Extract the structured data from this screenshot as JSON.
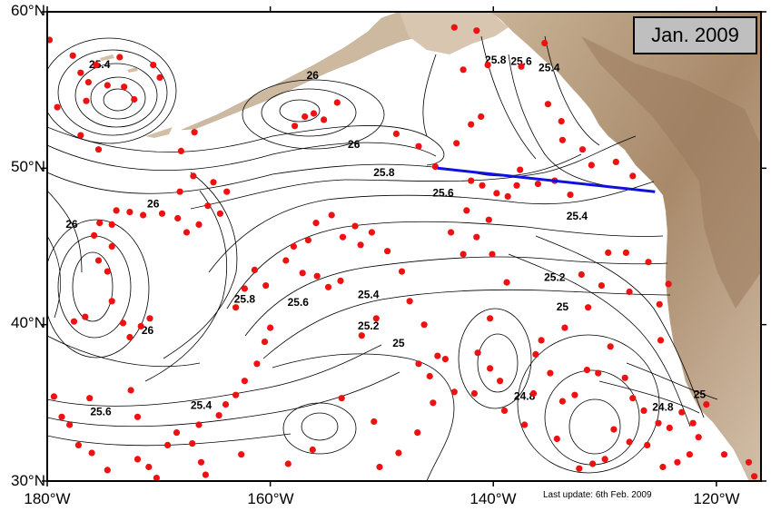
{
  "map": {
    "lat_labels": [
      {
        "label": "60°N",
        "lat": 60
      },
      {
        "label": "50°N",
        "lat": 50
      },
      {
        "label": "40°N",
        "lat": 40
      },
      {
        "label": "30°N",
        "lat": 30
      }
    ],
    "lon_labels": [
      {
        "label": "180°W",
        "lon": -180
      },
      {
        "label": "160°W",
        "lon": -160
      },
      {
        "label": "140°W",
        "lon": -140
      },
      {
        "label": "120°W",
        "lon": -120
      }
    ],
    "extent": {
      "lon_min": -180,
      "lon_max": -116,
      "lat_min": 30,
      "lat_max": 60
    },
    "date_label": "Jan. 2009",
    "update_note": "Last update: 6th Feb. 2009",
    "section_line": {
      "color": "#1010e0",
      "points": [
        [
          -145,
          50
        ],
        [
          -125.5,
          48.5
        ]
      ]
    },
    "float_color": "#ee1111",
    "contour_labels": [
      {
        "text": "25.4",
        "lon": -175.3,
        "lat": 56.4
      },
      {
        "text": "26",
        "lon": -156.2,
        "lat": 55.7
      },
      {
        "text": "26",
        "lon": -152.5,
        "lat": 51.3
      },
      {
        "text": "25.8",
        "lon": -149.8,
        "lat": 49.5
      },
      {
        "text": "25.6",
        "lon": -144.5,
        "lat": 48.2
      },
      {
        "text": "25.8",
        "lon": -139.8,
        "lat": 56.7
      },
      {
        "text": "25.6",
        "lon": -137.5,
        "lat": 56.6
      },
      {
        "text": "25.4",
        "lon": -135,
        "lat": 56.2
      },
      {
        "text": "26",
        "lon": -170.5,
        "lat": 47.5
      },
      {
        "text": "26",
        "lon": -177.8,
        "lat": 46.2
      },
      {
        "text": "25.4",
        "lon": -132.5,
        "lat": 46.7
      },
      {
        "text": "25.2",
        "lon": -134.5,
        "lat": 42.8
      },
      {
        "text": "25",
        "lon": -133.8,
        "lat": 40.9
      },
      {
        "text": "25.8",
        "lon": -162.3,
        "lat": 41.4
      },
      {
        "text": "25.6",
        "lon": -157.5,
        "lat": 41.2
      },
      {
        "text": "25.4",
        "lon": -151.2,
        "lat": 41.7
      },
      {
        "text": "25.2",
        "lon": -151.2,
        "lat": 39.7
      },
      {
        "text": "25",
        "lon": -148.5,
        "lat": 38.6
      },
      {
        "text": "26",
        "lon": -171,
        "lat": 39.4
      },
      {
        "text": "25.4",
        "lon": -166.2,
        "lat": 34.6
      },
      {
        "text": "25.6",
        "lon": -175.2,
        "lat": 34.2
      },
      {
        "text": "24.8",
        "lon": -137.2,
        "lat": 35.2
      },
      {
        "text": "24.8",
        "lon": -124.8,
        "lat": 34.5
      },
      {
        "text": "25",
        "lon": -121.5,
        "lat": 35.3
      }
    ],
    "floats": [
      [
        -179.8,
        58.2
      ],
      [
        -177.7,
        57.2
      ],
      [
        -177,
        56.1
      ],
      [
        -176.3,
        55.5
      ],
      [
        -175.6,
        56.6
      ],
      [
        -174.6,
        55.3
      ],
      [
        -173.5,
        57.1
      ],
      [
        -173.1,
        55.2
      ],
      [
        -172.2,
        54.4
      ],
      [
        -170.5,
        56.6
      ],
      [
        -169.9,
        55.8
      ],
      [
        -179.1,
        53.9
      ],
      [
        -177,
        52.1
      ],
      [
        -175.4,
        51.2
      ],
      [
        -176.5,
        54.3
      ],
      [
        -168,
        51.1
      ],
      [
        -166.8,
        52.3
      ],
      [
        -157.8,
        52.7
      ],
      [
        -156.9,
        53.3
      ],
      [
        -156.1,
        53.5
      ],
      [
        -155.2,
        53.1
      ],
      [
        -154,
        54.2
      ],
      [
        -148.7,
        52.2
      ],
      [
        -146.7,
        51.4
      ],
      [
        -145.2,
        50.1
      ],
      [
        -143.3,
        51.6
      ],
      [
        -142,
        52.8
      ],
      [
        -141.1,
        53.3
      ],
      [
        -140.5,
        56.6
      ],
      [
        -141.5,
        58.8
      ],
      [
        -143.5,
        59
      ],
      [
        -142.7,
        56.3
      ],
      [
        -137.5,
        56.5
      ],
      [
        -135.4,
        58
      ],
      [
        -135.1,
        54.1
      ],
      [
        -133.9,
        53
      ],
      [
        -133.8,
        51.8
      ],
      [
        -132,
        51.2
      ],
      [
        -131.2,
        50.2
      ],
      [
        -129,
        50.4
      ],
      [
        -127.5,
        49.5
      ],
      [
        -142,
        49.2
      ],
      [
        -141,
        48.9
      ],
      [
        -139.7,
        48.4
      ],
      [
        -138.7,
        48.2
      ],
      [
        -137.9,
        48.9
      ],
      [
        -137.6,
        49.9
      ],
      [
        -136,
        49
      ],
      [
        -134.5,
        49.2
      ],
      [
        -133.1,
        48.3
      ],
      [
        -165.1,
        49.1
      ],
      [
        -166.9,
        49.5
      ],
      [
        -168.1,
        48.5
      ],
      [
        -169.7,
        47.1
      ],
      [
        -171.4,
        47
      ],
      [
        -172.6,
        47.2
      ],
      [
        -173.8,
        47.3
      ],
      [
        -174.2,
        46.4
      ],
      [
        -175.3,
        46.5
      ],
      [
        -175.8,
        45.7
      ],
      [
        -174.2,
        45
      ],
      [
        -175.4,
        44.1
      ],
      [
        -174.6,
        43.4
      ],
      [
        -174.2,
        41.5
      ],
      [
        -173.2,
        40.1
      ],
      [
        -172.6,
        39.2
      ],
      [
        -171.6,
        39.9
      ],
      [
        -170.8,
        40.4
      ],
      [
        -176.6,
        40.5
      ],
      [
        -177.6,
        40.2
      ],
      [
        -163.9,
        48.5
      ],
      [
        -164.5,
        47.1
      ],
      [
        -165.6,
        47.6
      ],
      [
        -166.4,
        46.4
      ],
      [
        -167.5,
        45.9
      ],
      [
        -168.3,
        46.8
      ],
      [
        -161.4,
        43.5
      ],
      [
        -160.4,
        42.5
      ],
      [
        -162.3,
        42.3
      ],
      [
        -163.1,
        41.1
      ],
      [
        -160,
        39.8
      ],
      [
        -160.5,
        38.9
      ],
      [
        -161.2,
        37.5
      ],
      [
        -162.3,
        36.4
      ],
      [
        -163.1,
        35.5
      ],
      [
        -164,
        34.9
      ],
      [
        -164.6,
        34.2
      ],
      [
        -166.4,
        33.6
      ],
      [
        -156.6,
        45.4
      ],
      [
        -157.9,
        45
      ],
      [
        -158.6,
        44.1
      ],
      [
        -157.1,
        43.3
      ],
      [
        -155.8,
        43.1
      ],
      [
        -154.8,
        42.4
      ],
      [
        -153.7,
        42.8
      ],
      [
        -155.9,
        46.5
      ],
      [
        -154.5,
        47
      ],
      [
        -152.4,
        46.3
      ],
      [
        -151.9,
        45.1
      ],
      [
        -153.5,
        45.6
      ],
      [
        -150.9,
        45.9
      ],
      [
        -149.5,
        44.7
      ],
      [
        -148.2,
        43.4
      ],
      [
        -147.5,
        41.5
      ],
      [
        -146.2,
        40
      ],
      [
        -145,
        38
      ],
      [
        -146.7,
        37.5
      ],
      [
        -145.7,
        36.7
      ],
      [
        -145.4,
        35
      ],
      [
        -143.5,
        35.7
      ],
      [
        -144.3,
        37.8
      ],
      [
        -142.7,
        44.5
      ],
      [
        -143.8,
        45.9
      ],
      [
        -142.4,
        47.3
      ],
      [
        -141.5,
        45.6
      ],
      [
        -140.4,
        46.7
      ],
      [
        -140.1,
        44.5
      ],
      [
        -138.8,
        42.7
      ],
      [
        -140.3,
        40.4
      ],
      [
        -141.4,
        38.2
      ],
      [
        -140.3,
        37.2
      ],
      [
        -139.4,
        36.4
      ],
      [
        -141.7,
        35.6
      ],
      [
        -139,
        34.5
      ],
      [
        -137.2,
        33.6
      ],
      [
        -136.4,
        35.6
      ],
      [
        -136.2,
        38.1
      ],
      [
        -135.7,
        39
      ],
      [
        -134.9,
        36.9
      ],
      [
        -133.6,
        39.8
      ],
      [
        -133.8,
        35.1
      ],
      [
        -132.7,
        35.5
      ],
      [
        -131.6,
        37.1
      ],
      [
        -130.6,
        36.9
      ],
      [
        -129.5,
        38.6
      ],
      [
        -128.2,
        36.6
      ],
      [
        -132.1,
        43.2
      ],
      [
        -131.5,
        41.1
      ],
      [
        -130.3,
        42.5
      ],
      [
        -129.7,
        44.6
      ],
      [
        -128.1,
        44.6
      ],
      [
        -127.8,
        42.1
      ],
      [
        -126.1,
        44
      ],
      [
        -125.1,
        41.3
      ],
      [
        -124.3,
        42.6
      ],
      [
        -125,
        39
      ],
      [
        -127.5,
        35.3
      ],
      [
        -126.5,
        34.5
      ],
      [
        -125.2,
        33.7
      ],
      [
        -124.2,
        33.4
      ],
      [
        -123.1,
        34.4
      ],
      [
        -122.1,
        33.7
      ],
      [
        -120.9,
        34.9
      ],
      [
        -121.6,
        32.8
      ],
      [
        -122.4,
        31.7
      ],
      [
        -123.5,
        31.2
      ],
      [
        -124.8,
        30.9
      ],
      [
        -126.2,
        32.3
      ],
      [
        -127.8,
        32.5
      ],
      [
        -129.2,
        33.3
      ],
      [
        -130,
        31.4
      ],
      [
        -131.1,
        31.1
      ],
      [
        -132.3,
        30.8
      ],
      [
        -134.3,
        32.7
      ],
      [
        -117.1,
        31.2
      ],
      [
        -116.6,
        30.3
      ],
      [
        -119.3,
        31.7
      ],
      [
        -179.4,
        35.4
      ],
      [
        -178.7,
        34.1
      ],
      [
        -178,
        33.6
      ],
      [
        -177.2,
        32.3
      ],
      [
        -176,
        31.8
      ],
      [
        -174.6,
        30.7
      ],
      [
        -171.9,
        31.4
      ],
      [
        -170.9,
        30.9
      ],
      [
        -170.2,
        30.2
      ],
      [
        -169.2,
        32.3
      ],
      [
        -168.4,
        33.1
      ],
      [
        -167,
        32.4
      ],
      [
        -166.2,
        31.2
      ],
      [
        -171.9,
        34.1
      ],
      [
        -172.5,
        35.8
      ],
      [
        -176.2,
        35.3
      ],
      [
        -153.6,
        35.3
      ],
      [
        -156.2,
        32
      ],
      [
        -150.2,
        30.9
      ],
      [
        -148.5,
        31.8
      ],
      [
        -146.8,
        33.1
      ],
      [
        -150.7,
        33.8
      ],
      [
        -158.4,
        31.1
      ],
      [
        -162.6,
        31.7
      ],
      [
        -165.8,
        30.4
      ],
      [
        -150.5,
        40.4
      ],
      [
        -151.8,
        39.3
      ]
    ]
  }
}
